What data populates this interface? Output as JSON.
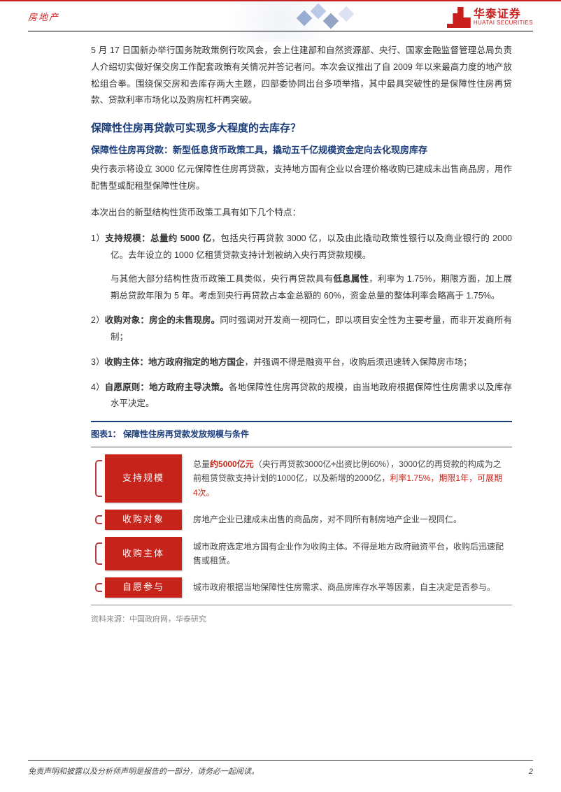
{
  "header": {
    "category": "房地产",
    "brand_cn": "华泰证券",
    "brand_en": "HUATAI SECURITIES",
    "accent_color": "#c91e1e",
    "heading_color": "#1a3c7a"
  },
  "intro_paragraph": "5 月 17 日国新办举行国务院政策例行吹风会，会上住建部和自然资源部、央行、国家金融监督管理总局负责人介绍切实做好保交房工作配套政策有关情况并答记者问。本次会议推出了自 2009 年以来最高力度的地产放松组合拳。围绕保交房和去库存两大主题，四部委协同出台多项举措，其中最具突破性的是保障性住房再贷款、贷款利率市场化以及购房杠杆再突破。",
  "section": {
    "h1": "保障性住房再贷款可实现多大程度的去库存？",
    "h2": "保障性住房再贷款：新型低息货币政策工具，撬动五千亿规模资金定向去化现房库存",
    "lead": "央行表示将设立 3000 亿元保障性住房再贷款，支持地方国有企业以合理价格收购已建成未出售商品房，用作配售型或配租型保障性住房。",
    "sub_lead": "本次出台的新型结构性货币政策工具有如下几个特点：",
    "items": [
      {
        "num": "1）",
        "label": "支持规模：总量约 5000 亿",
        "rest": "，包括央行再贷款 3000 亿，以及由此撬动政策性银行以及商业银行的 2000 亿。去年设立的 1000 亿租赁贷款支持计划被纳入央行再贷款规模。",
        "sub_a": "与其他大部分结构性货币政策工具类似，央行再贷款具有",
        "sub_bold": "低息属性",
        "sub_b": "，利率为 1.75%，期限方面，加上展期总贷款年限为 5 年。考虑到央行再贷款占本金总额的 60%，资金总量的整体利率会略高于 1.75%。"
      },
      {
        "num": "2）",
        "label": "收购对象：房企的未售现房。",
        "rest": "同时强调对开发商一视同仁，即以项目安全性为主要考量，而非开发商所有制；"
      },
      {
        "num": "3）",
        "label": "收购主体：地方政府指定的地方国企",
        "rest": "，并强调不得是融资平台，收购后须迅速转入保障房市场；"
      },
      {
        "num": "4）",
        "label": "自愿原则：地方政府主导决策。",
        "rest": "各地保障性住房再贷款的规模，由当地政府根据保障性住房需求以及库存水平决定。"
      }
    ]
  },
  "figure": {
    "title": "图表1： 保障性住房再贷款发放规模与条件",
    "source": "资料来源：中国政府网，华泰研究",
    "tag_bg": "#c6241b",
    "tag_fg": "#ffffff",
    "highlight_color": "#c6241b",
    "rows": [
      {
        "tag": "支持规模",
        "pre": "总量",
        "hl1": "约5000亿元",
        "mid1": "（央行再贷款3000亿",
        "bold_div": "÷",
        "mid2": "出资比例60%），3000亿的再贷款的构成为之前租赁贷款支持计划的1000亿，以及新增的2000亿，",
        "hl2": "利率1.75%，期限1年，可展期4次。"
      },
      {
        "tag": "收购对象",
        "text": "房地产企业已建成未出售的商品房，对不同所有制房地产企业一视同仁。"
      },
      {
        "tag": "收购主体",
        "text": "城市政府选定地方国有企业作为收购主体。不得是地方政府融资平台，收购后迅速配售或租赁。"
      },
      {
        "tag": "自愿参与",
        "text": "城市政府根据当地保障性住房需求、商品房库存水平等因素，自主决定是否参与。"
      }
    ]
  },
  "footer": {
    "disclaimer": "免责声明和披露以及分析师声明是报告的一部分，请务必一起阅读。",
    "page": "2"
  }
}
